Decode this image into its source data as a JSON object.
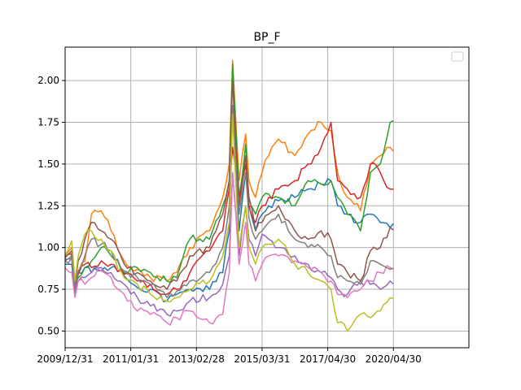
{
  "chart_data": {
    "type": "line",
    "title": "BP_F",
    "xlabel": "",
    "ylabel": "",
    "grid": true,
    "legend_position": "upper right",
    "legend_entries": [],
    "xlim": [
      0,
      123
    ],
    "ylim": [
      0.4,
      2.2
    ],
    "xticks": [
      {
        "label": "2009/12/31",
        "index": 0
      },
      {
        "label": "2011/01/31",
        "index": 20
      },
      {
        "label": "2013/02/28",
        "index": 40
      },
      {
        "label": "2015/03/31",
        "index": 60
      },
      {
        "label": "2017/04/30",
        "index": 80
      },
      {
        "label": "2020/04/30",
        "index": 100
      }
    ],
    "yticks": [
      0.5,
      0.75,
      1.0,
      1.25,
      1.5,
      1.75,
      2.0
    ],
    "ytick_labels": [
      "0.50",
      "0.75",
      "1.00",
      "1.25",
      "1.50",
      "1.75",
      "2.00"
    ],
    "keypoints": [
      0,
      2,
      3,
      4,
      6,
      8,
      11,
      14,
      18,
      22,
      26,
      31,
      34,
      38,
      44,
      48,
      50,
      51,
      53,
      55,
      56,
      58,
      60,
      62,
      65,
      70,
      74,
      78,
      81,
      83,
      86,
      90,
      93,
      96,
      99
    ],
    "series": [
      {
        "color": "#1f77b4",
        "values": [
          0.9,
          0.9,
          0.72,
          0.85,
          0.88,
          0.85,
          0.86,
          0.88,
          0.83,
          0.76,
          0.75,
          0.68,
          0.72,
          0.75,
          0.75,
          0.85,
          1.1,
          1.85,
          1.1,
          1.45,
          1.25,
          1.1,
          1.2,
          1.25,
          1.28,
          1.3,
          1.35,
          1.38,
          1.4,
          1.25,
          1.2,
          1.15,
          1.2,
          1.15,
          1.12
        ]
      },
      {
        "color": "#ff7f0e",
        "values": [
          0.95,
          1.0,
          0.8,
          0.85,
          0.92,
          1.2,
          1.22,
          1.1,
          0.92,
          0.87,
          0.82,
          0.8,
          0.85,
          1.0,
          1.1,
          1.3,
          1.5,
          2.12,
          1.4,
          1.68,
          1.4,
          1.3,
          1.45,
          1.55,
          1.65,
          1.55,
          1.68,
          1.75,
          1.7,
          1.45,
          1.3,
          1.22,
          1.5,
          1.55,
          1.6
        ]
      },
      {
        "color": "#2ca02c",
        "values": [
          0.93,
          0.95,
          0.78,
          0.82,
          0.88,
          0.92,
          1.0,
          0.95,
          0.85,
          0.88,
          0.85,
          0.8,
          0.82,
          1.05,
          1.05,
          1.25,
          1.4,
          2.1,
          1.3,
          1.62,
          1.25,
          1.2,
          1.3,
          1.32,
          1.3,
          1.25,
          1.4,
          1.38,
          1.4,
          1.3,
          1.2,
          1.1,
          1.45,
          1.5,
          1.75
        ]
      },
      {
        "color": "#d62728",
        "values": [
          0.94,
          0.96,
          0.76,
          0.84,
          0.9,
          0.88,
          0.92,
          0.9,
          0.84,
          0.8,
          0.78,
          0.72,
          0.75,
          0.85,
          0.98,
          1.1,
          1.35,
          1.6,
          1.3,
          1.5,
          1.25,
          1.15,
          1.25,
          1.3,
          1.35,
          1.4,
          1.5,
          1.6,
          1.75,
          1.4,
          1.35,
          1.3,
          1.5,
          1.45,
          1.35
        ]
      },
      {
        "color": "#9467bd",
        "values": [
          0.92,
          0.93,
          0.74,
          0.8,
          0.82,
          0.85,
          0.88,
          0.85,
          0.78,
          0.7,
          0.65,
          0.6,
          0.62,
          0.68,
          0.7,
          0.78,
          0.95,
          1.45,
          0.95,
          1.25,
          1.05,
          0.95,
          1.08,
          1.05,
          1.0,
          0.95,
          0.9,
          0.85,
          0.82,
          0.75,
          0.72,
          0.8,
          0.78,
          0.75,
          0.8
        ]
      },
      {
        "color": "#8c564b",
        "values": [
          0.94,
          0.98,
          0.78,
          0.92,
          1.05,
          1.15,
          1.1,
          1.05,
          0.9,
          0.85,
          0.8,
          0.75,
          0.8,
          0.95,
          1.0,
          1.2,
          1.4,
          2.0,
          1.25,
          1.55,
          1.3,
          1.1,
          1.15,
          1.2,
          1.25,
          1.1,
          1.05,
          1.1,
          1.05,
          0.9,
          0.85,
          0.8,
          0.98,
          1.0,
          1.12
        ]
      },
      {
        "color": "#e377c2",
        "values": [
          0.88,
          0.85,
          0.7,
          0.8,
          0.78,
          0.82,
          0.86,
          0.82,
          0.72,
          0.62,
          0.6,
          0.55,
          0.58,
          0.62,
          0.55,
          0.6,
          0.85,
          1.45,
          0.9,
          1.15,
          0.9,
          0.8,
          0.9,
          0.95,
          0.95,
          0.92,
          0.88,
          0.85,
          0.8,
          0.72,
          0.7,
          0.75,
          0.8,
          0.85,
          0.88
        ]
      },
      {
        "color": "#7f7f7f",
        "values": [
          0.92,
          0.94,
          0.75,
          0.86,
          0.95,
          1.05,
          1.02,
          0.98,
          0.86,
          0.82,
          0.78,
          0.7,
          0.74,
          0.8,
          0.85,
          1.0,
          1.25,
          1.85,
          1.2,
          1.45,
          1.18,
          1.05,
          1.1,
          1.15,
          1.2,
          1.05,
          1.0,
          1.0,
          0.95,
          0.82,
          0.8,
          0.78,
          0.92,
          0.9,
          0.87
        ]
      },
      {
        "color": "#bcbd22",
        "values": [
          0.95,
          1.04,
          0.8,
          0.95,
          1.08,
          1.1,
          1.05,
          0.98,
          0.82,
          0.78,
          0.72,
          0.68,
          0.7,
          0.75,
          0.8,
          0.95,
          1.15,
          1.8,
          1.0,
          1.25,
          1.0,
          0.9,
          1.0,
          1.02,
          1.05,
          0.9,
          0.85,
          0.8,
          0.75,
          0.55,
          0.5,
          0.6,
          0.58,
          0.62,
          0.7
        ]
      }
    ]
  }
}
